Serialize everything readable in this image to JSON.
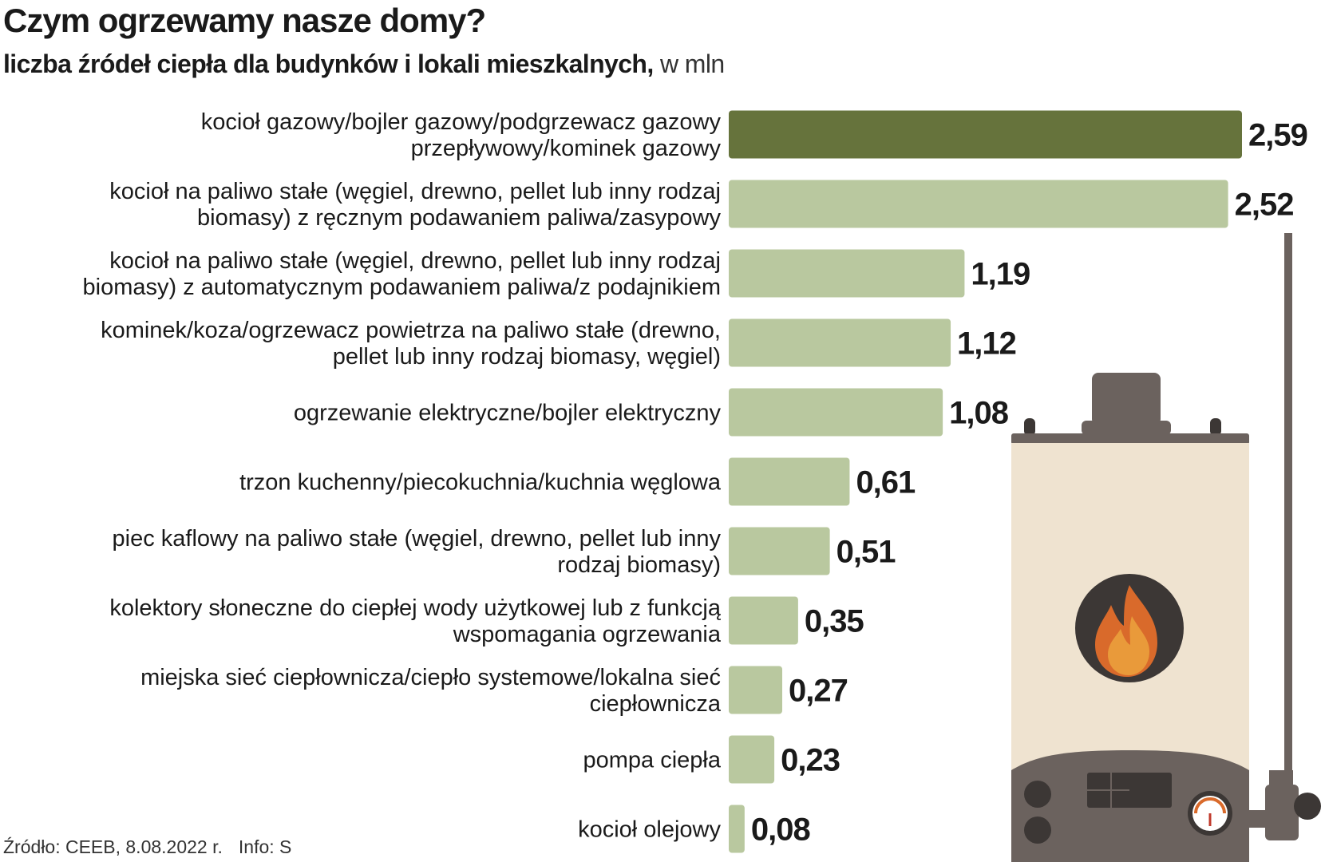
{
  "title": "Czym ogrzewamy nasze domy?",
  "subtitle_main": "liczba źródeł ciepła dla budynków i lokali mieszkalnych,",
  "subtitle_unit": "w mln",
  "source": "Źródło: CEEB, 8.08.2022 r.",
  "info": "Info: S",
  "colors": {
    "highlight": "#66733c",
    "bar": "#b9c89f",
    "text": "#1a1a1a"
  },
  "chart_data": {
    "type": "bar",
    "orientation": "horizontal",
    "categories": [
      [
        "kocioł gazowy/bojler gazowy/podgrzewacz gazowy",
        "przepływowy/kominek gazowy"
      ],
      [
        "kocioł na paliwo stałe (węgiel, drewno, pellet lub inny rodzaj",
        "biomasy) z ręcznym podawaniem paliwa/zasypowy"
      ],
      [
        "kocioł na paliwo stałe (węgiel, drewno, pellet lub inny rodzaj",
        "biomasy) z automatycznym podawaniem paliwa/z podajnikiem"
      ],
      [
        "kominek/koza/ogrzewacz powietrza na paliwo stałe (drewno,",
        "pellet lub inny rodzaj biomasy, węgiel)"
      ],
      [
        "ogrzewanie elektryczne/bojler elektryczny"
      ],
      [
        "trzon kuchenny/piecokuchnia/kuchnia węglowa"
      ],
      [
        "piec kaflowy na paliwo stałe (węgiel, drewno, pellet lub inny",
        "rodzaj biomasy)"
      ],
      [
        "kolektory słoneczne do ciepłej wody użytkowej lub z funkcją",
        "wspomagania ogrzewania"
      ],
      [
        "miejska sieć ciepłownicza/ciepło systemowe/lokalna sieć",
        "ciepłownicza"
      ],
      [
        "pompa ciepła"
      ],
      [
        "kocioł olejowy"
      ]
    ],
    "values": [
      2.59,
      2.52,
      1.19,
      1.12,
      1.08,
      0.61,
      0.51,
      0.35,
      0.27,
      0.23,
      0.08
    ],
    "value_labels": [
      "2,59",
      "2,52",
      "1,19",
      "1,12",
      "1,08",
      "0,61",
      "0,51",
      "0,35",
      "0,27",
      "0,23",
      "0,08"
    ],
    "highlight_index": 0,
    "xlim": [
      0,
      2.59
    ],
    "grid": false,
    "legend": "none"
  },
  "illustration": {
    "name": "gas-boiler-icon",
    "colors": {
      "body": "#efe3d0",
      "dark": "#6b625e",
      "darker": "#3c3735",
      "flame_outer": "#d96a2b",
      "flame_inner": "#e99a3a"
    }
  }
}
